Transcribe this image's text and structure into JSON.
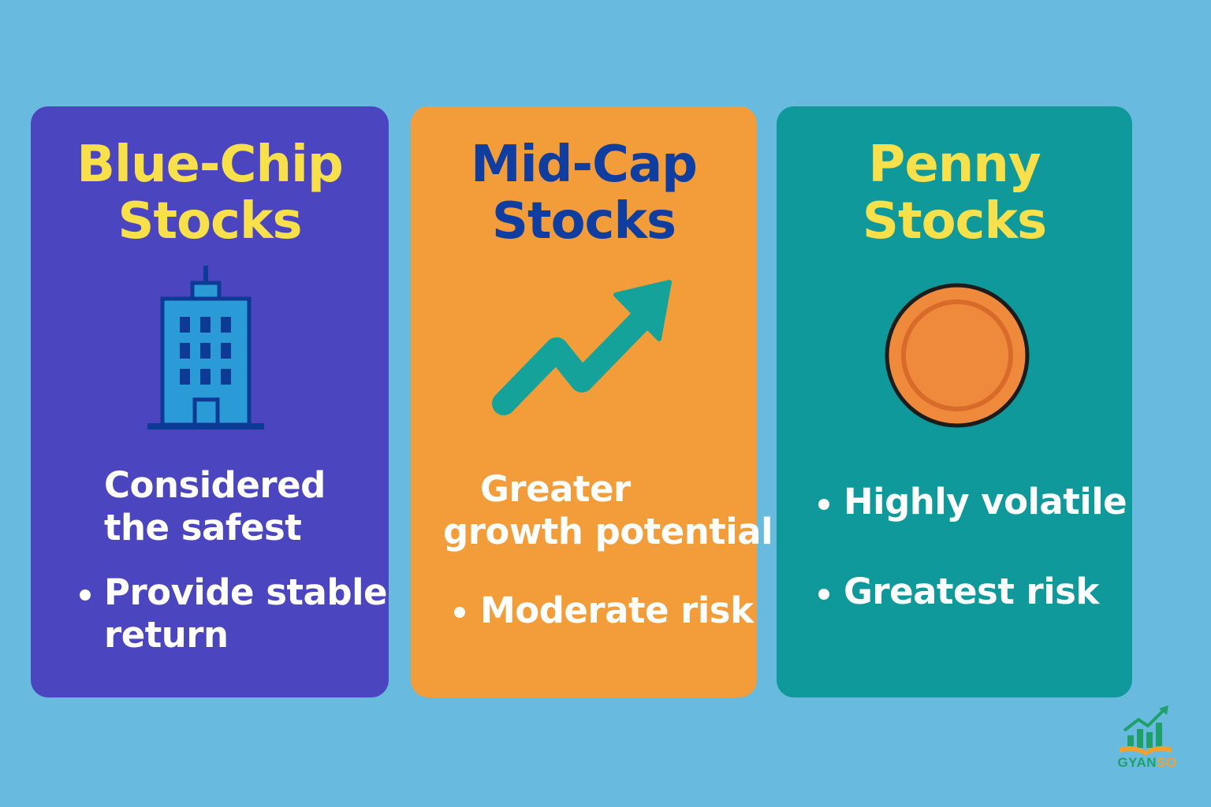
{
  "cards": [
    {
      "title_line1": "Blue-Chip",
      "title_line2": "Stocks",
      "icon": "office-building-icon",
      "text1_line1": "Considered",
      "text1_line2": "the safest",
      "bullet1_line1": "Provide stable",
      "bullet1_line2": "return",
      "bg_color": "#4b46bf",
      "title_color": "#f7e04a"
    },
    {
      "title_line1": "Mid-Cap",
      "title_line2": "Stocks",
      "icon": "trending-up-arrow-icon",
      "text1_line1": "Greater",
      "text1_line2": "growth potential",
      "bullet1": "Moderate risk",
      "bg_color": "#f29d3a",
      "title_color": "#0f3ea0"
    },
    {
      "title_line1": "Penny",
      "title_line2": "Stocks",
      "icon": "coin-icon",
      "bullet1": "Highly volatile",
      "bullet2": "Greatest risk",
      "bg_color": "#10999a",
      "title_color": "#f7e04a"
    }
  ],
  "logo": {
    "icon": "growth-chart-book-logo",
    "text_part1": "GYAN",
    "text_part2": "SO"
  }
}
